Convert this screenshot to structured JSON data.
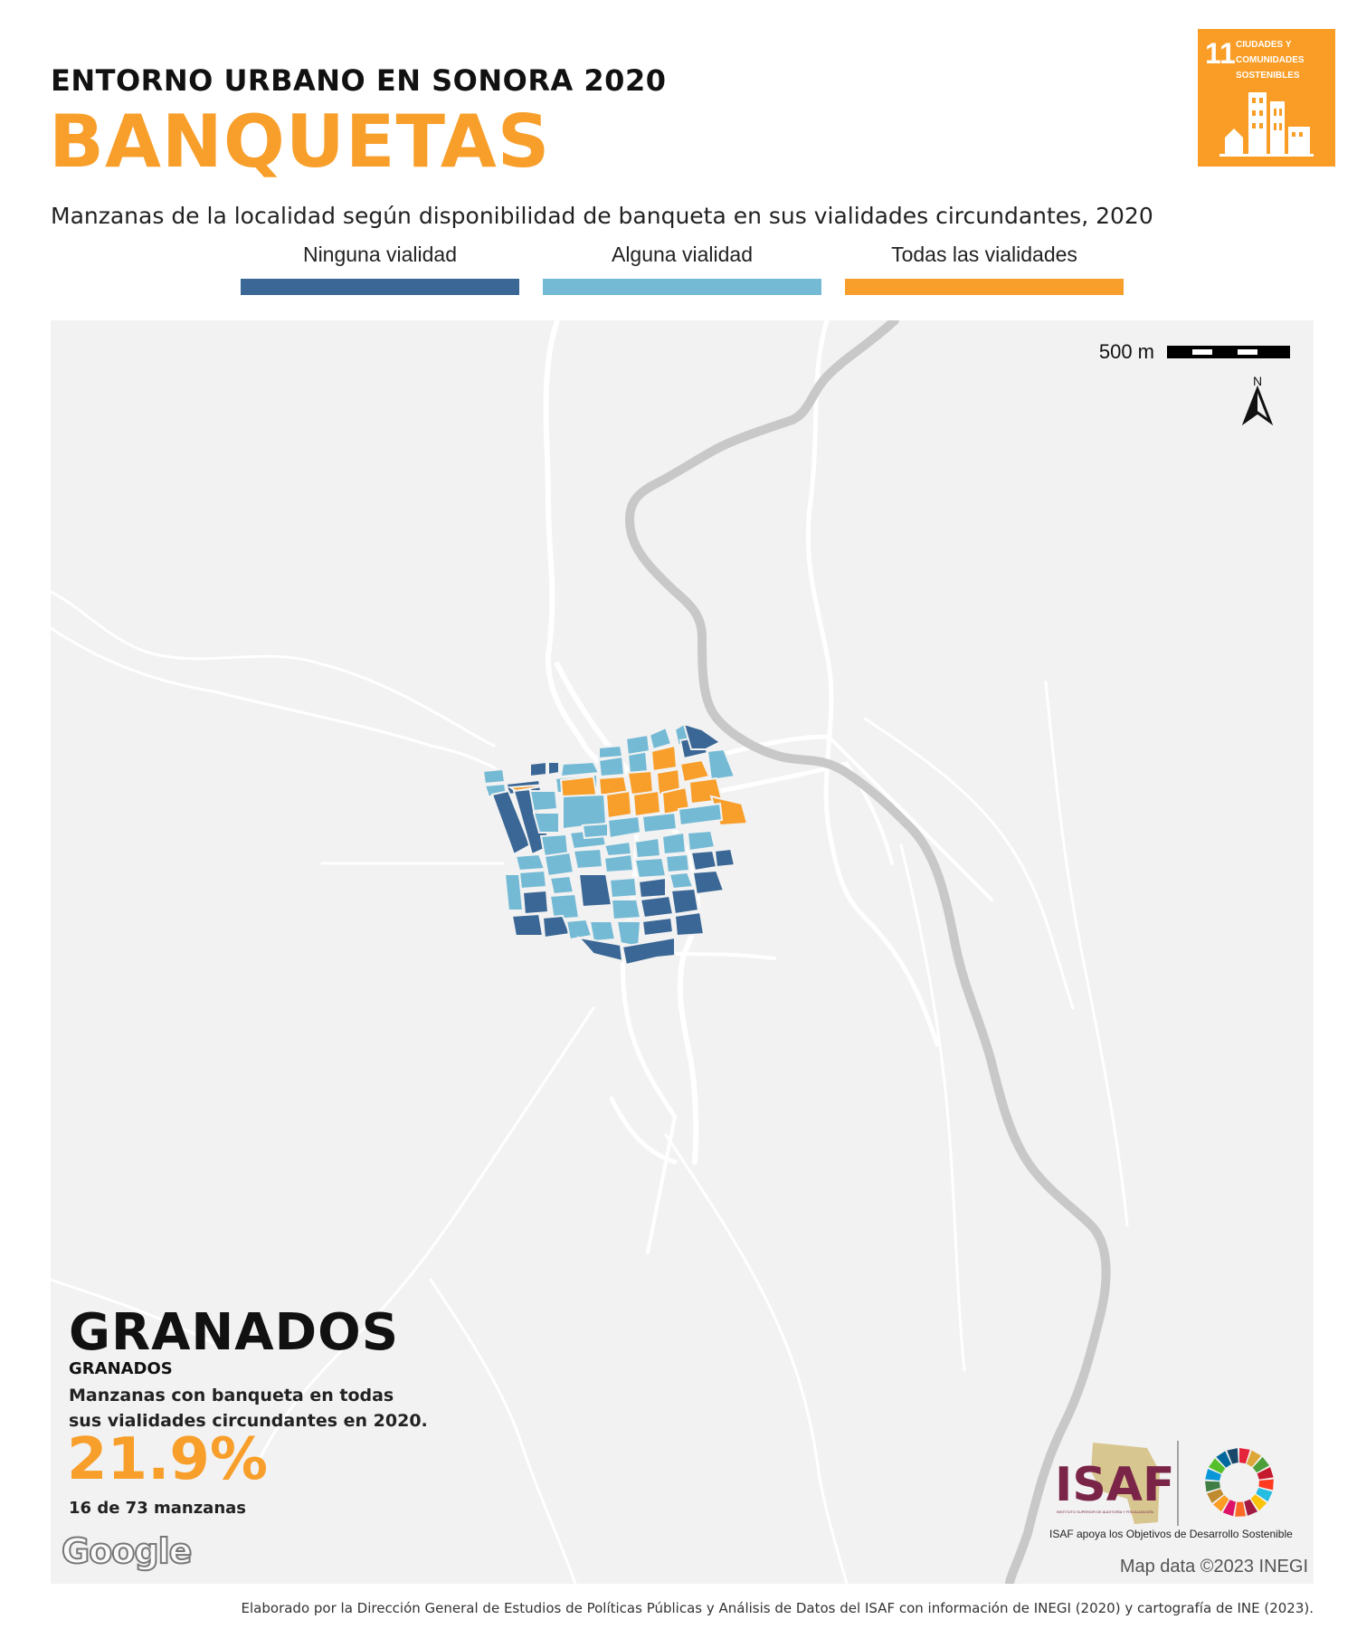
{
  "header": {
    "kicker": "ENTORNO URBANO EN SONORA 2020",
    "title": "BANQUETAS",
    "subtitle": "Manzanas de la localidad según disponibilidad de banqueta en sus vialidades circundantes, 2020"
  },
  "legend": [
    {
      "label": "Ninguna vialidad",
      "color": "#3A6795"
    },
    {
      "label": "Alguna vialidad",
      "color": "#74BAD5"
    },
    {
      "label": "Todas las vialidades",
      "color": "#F89F2B"
    }
  ],
  "sdg_badge": {
    "number": "11",
    "label": "CIUDADES Y COMUNIDADES SOSTENIBLES",
    "color": "#F99D26",
    "icon": "city-buildings-icon"
  },
  "map": {
    "scale_label": "500 m",
    "north_label": "N",
    "attribution": "Map data ©2023 INEGI",
    "provider": "Google"
  },
  "locality": {
    "name": "GRANADOS",
    "subname": "GRANADOS",
    "description": "Manzanas con banqueta en todas sus vialidades circundantes en 2020.",
    "percent": "21.9%",
    "count": "16 de 73 manzanas"
  },
  "isaf": {
    "logo_text": "ISAF",
    "logo_subtext": "INSTITUTO SUPERIOR DE AUDITORÍA Y FISCALIZACIÓN",
    "caption": "ISAF apoya los Objetivos de Desarrollo Sostenible"
  },
  "credit": "Elaborado por la Dirección General de Estudios de Políticas Públicas y Análisis de Datos del ISAF con información de INEGI (2020) y cartografía de INE (2023).",
  "colors": {
    "accent": "#F89F2B",
    "none": "#3A6795",
    "some": "#74BAD5",
    "all": "#F89F2B",
    "river": "#c8c8c8",
    "road": "#ffffff"
  }
}
